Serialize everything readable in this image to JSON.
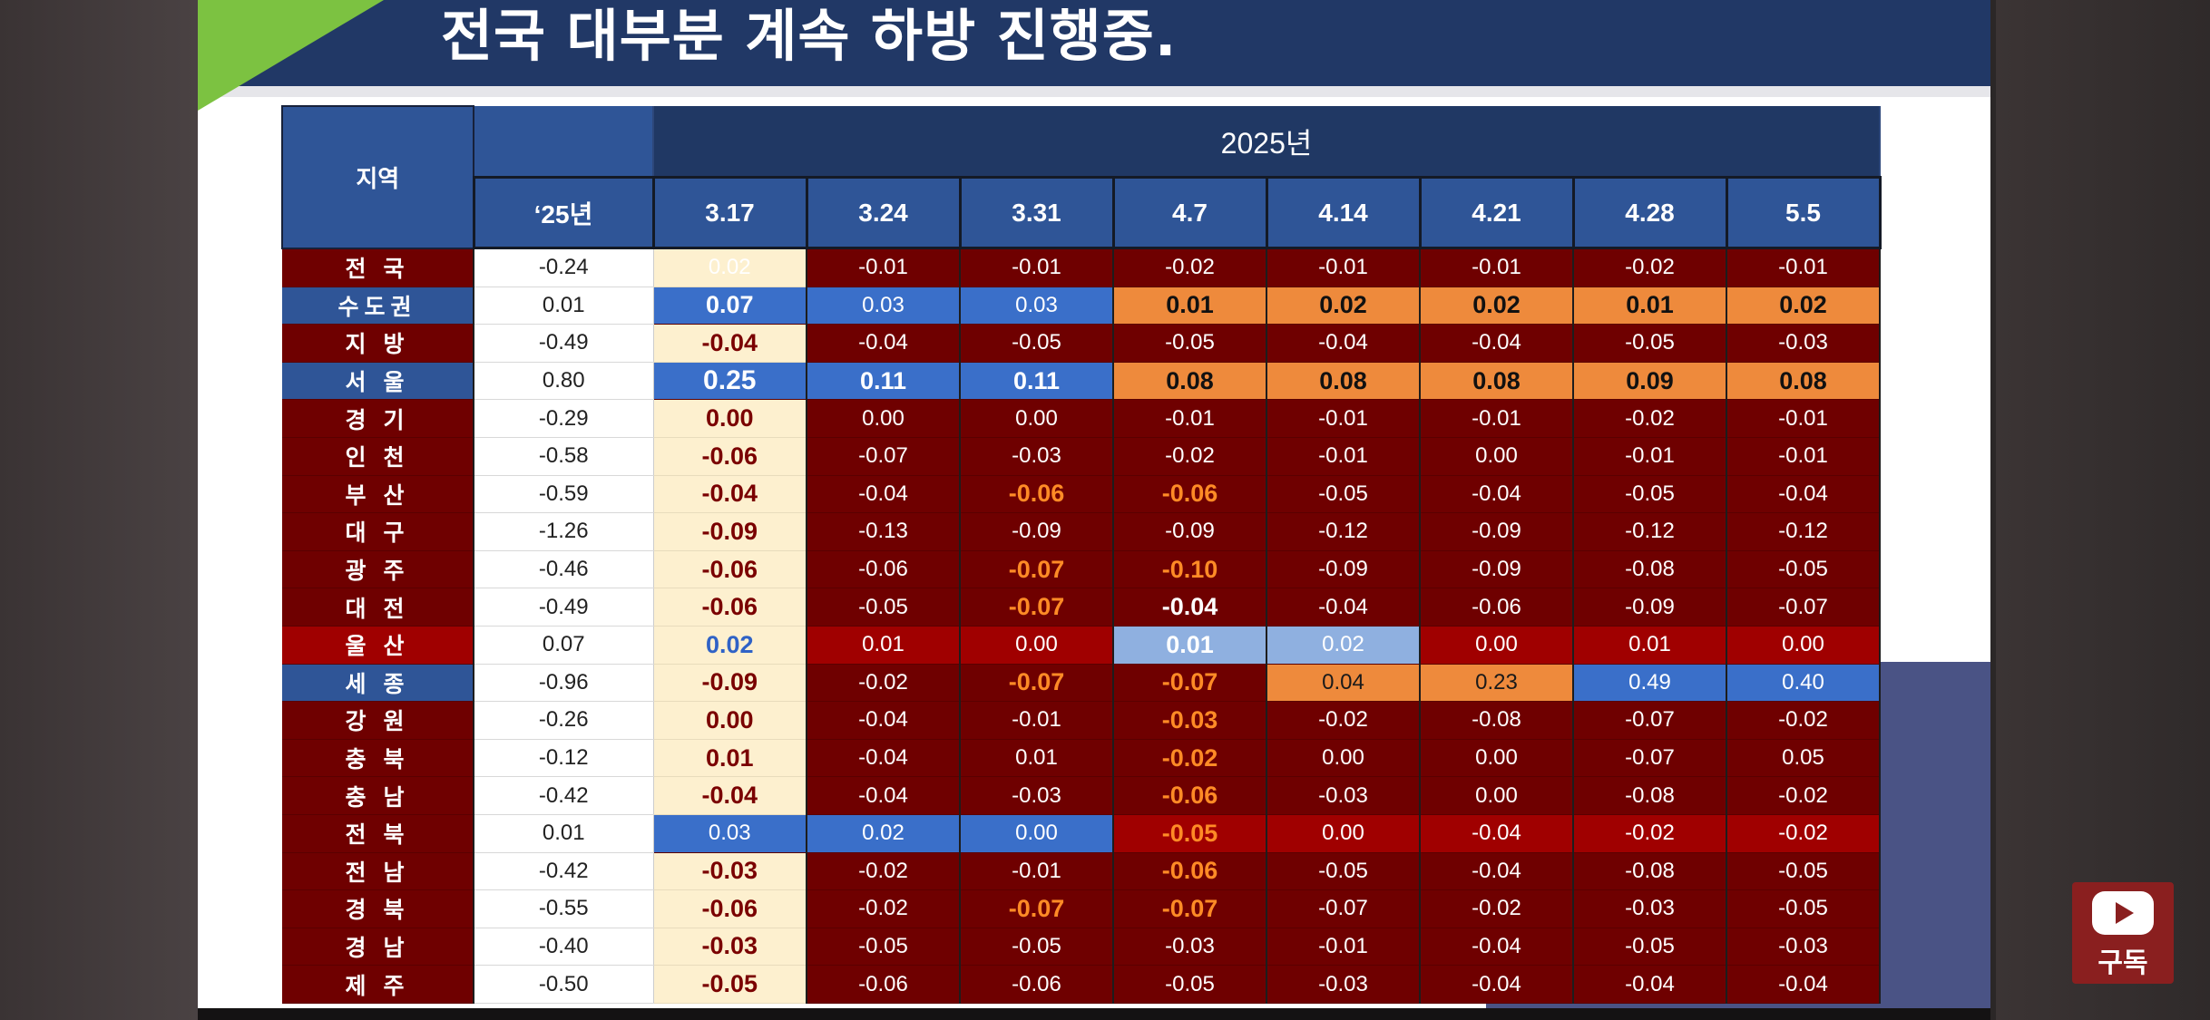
{
  "title": "전국 대부분 계속 하방 진행중.",
  "table": {
    "region_header": "지역",
    "year_header": "2025년",
    "col25_header": "‘25년",
    "weeks": [
      "3.17",
      "3.24",
      "3.31",
      "4.7",
      "4.14",
      "4.21",
      "4.28",
      "5.5"
    ],
    "rows": [
      {
        "region": "전 국",
        "c25": "-0.24",
        "v": [
          "0.02",
          "-0.01",
          "-0.01",
          "-0.02",
          "-0.01",
          "-0.01",
          "-0.02",
          "-0.01"
        ]
      },
      {
        "region": "수도권",
        "c25": "0.01",
        "v": [
          "0.07",
          "0.03",
          "0.03",
          "0.01",
          "0.02",
          "0.02",
          "0.01",
          "0.02"
        ]
      },
      {
        "region": "지 방",
        "c25": "-0.49",
        "v": [
          "-0.04",
          "-0.04",
          "-0.05",
          "-0.05",
          "-0.04",
          "-0.04",
          "-0.05",
          "-0.03"
        ]
      },
      {
        "region": "서 울",
        "c25": "0.80",
        "v": [
          "0.25",
          "0.11",
          "0.11",
          "0.08",
          "0.08",
          "0.08",
          "0.09",
          "0.08"
        ]
      },
      {
        "region": "경 기",
        "c25": "-0.29",
        "v": [
          "0.00",
          "0.00",
          "0.00",
          "-0.01",
          "-0.01",
          "-0.01",
          "-0.02",
          "-0.01"
        ]
      },
      {
        "region": "인 천",
        "c25": "-0.58",
        "v": [
          "-0.06",
          "-0.07",
          "-0.03",
          "-0.02",
          "-0.01",
          "0.00",
          "-0.01",
          "-0.01"
        ]
      },
      {
        "region": "부 산",
        "c25": "-0.59",
        "v": [
          "-0.04",
          "-0.04",
          "-0.06",
          "-0.06",
          "-0.05",
          "-0.04",
          "-0.05",
          "-0.04"
        ]
      },
      {
        "region": "대 구",
        "c25": "-1.26",
        "v": [
          "-0.09",
          "-0.13",
          "-0.09",
          "-0.09",
          "-0.12",
          "-0.09",
          "-0.12",
          "-0.12"
        ]
      },
      {
        "region": "광 주",
        "c25": "-0.46",
        "v": [
          "-0.06",
          "-0.06",
          "-0.07",
          "-0.10",
          "-0.09",
          "-0.09",
          "-0.08",
          "-0.05"
        ]
      },
      {
        "region": "대 전",
        "c25": "-0.49",
        "v": [
          "-0.06",
          "-0.05",
          "-0.07",
          "-0.04",
          "-0.04",
          "-0.06",
          "-0.09",
          "-0.07"
        ]
      },
      {
        "region": "울 산",
        "c25": "0.07",
        "v": [
          "0.02",
          "0.01",
          "0.00",
          "0.01",
          "0.02",
          "0.00",
          "0.01",
          "0.00"
        ]
      },
      {
        "region": "세 종",
        "c25": "-0.96",
        "v": [
          "-0.09",
          "-0.02",
          "-0.07",
          "-0.07",
          "0.04",
          "0.23",
          "0.49",
          "0.40"
        ]
      },
      {
        "region": "강 원",
        "c25": "-0.26",
        "v": [
          "0.00",
          "-0.04",
          "-0.01",
          "-0.03",
          "-0.02",
          "-0.08",
          "-0.07",
          "-0.02"
        ]
      },
      {
        "region": "충 북",
        "c25": "-0.12",
        "v": [
          "0.01",
          "-0.04",
          "0.01",
          "-0.02",
          "0.00",
          "0.00",
          "-0.07",
          "0.05"
        ]
      },
      {
        "region": "충 남",
        "c25": "-0.42",
        "v": [
          "-0.04",
          "-0.04",
          "-0.03",
          "-0.06",
          "-0.03",
          "0.00",
          "-0.08",
          "-0.02"
        ]
      },
      {
        "region": "전 북",
        "c25": "0.01",
        "v": [
          "0.03",
          "0.02",
          "0.00",
          "-0.05",
          "0.00",
          "-0.04",
          "-0.02",
          "-0.02"
        ]
      },
      {
        "region": "전 남",
        "c25": "-0.42",
        "v": [
          "-0.03",
          "-0.02",
          "-0.01",
          "-0.06",
          "-0.05",
          "-0.04",
          "-0.08",
          "-0.05"
        ]
      },
      {
        "region": "경 북",
        "c25": "-0.55",
        "v": [
          "-0.06",
          "-0.02",
          "-0.07",
          "-0.07",
          "-0.07",
          "-0.02",
          "-0.03",
          "-0.05"
        ]
      },
      {
        "region": "경 남",
        "c25": "-0.40",
        "v": [
          "-0.03",
          "-0.05",
          "-0.05",
          "-0.03",
          "-0.01",
          "-0.04",
          "-0.05",
          "-0.03"
        ]
      },
      {
        "region": "제 주",
        "c25": "-0.50",
        "v": [
          "-0.05",
          "-0.06",
          "-0.06",
          "-0.05",
          "-0.03",
          "-0.04",
          "-0.04",
          "-0.04"
        ]
      }
    ],
    "colors": {
      "dark_red": "#6f0000",
      "red": "#a00000",
      "blue": "#3a6fc9",
      "light_blue": "#8fb0e0",
      "orange": "#ee8a3c",
      "navy": "#2f5597",
      "cream": "#fdf0cf"
    }
  },
  "subscribe": {
    "label": "구독",
    "icon": "youtube-play-icon"
  }
}
